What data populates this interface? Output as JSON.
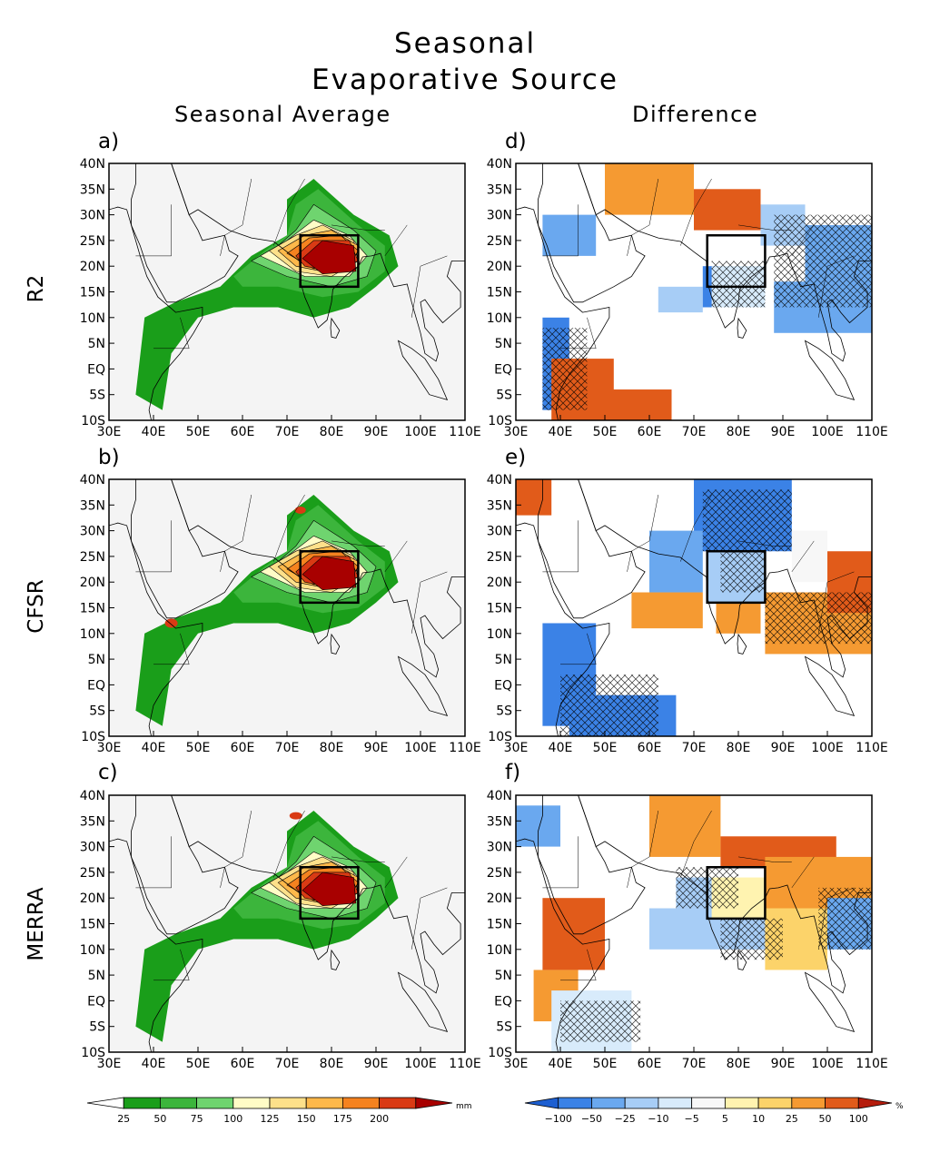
{
  "figure": {
    "title_line1": "Seasonal",
    "title_line2": "Evaporative Source",
    "col_left": "Seasonal Average",
    "col_right": "Difference",
    "rows": [
      "R2",
      "CFSR",
      "MERRA"
    ]
  },
  "panels": [
    {
      "id": "a",
      "label": "a)",
      "kind": "average",
      "row": 0,
      "col": 0
    },
    {
      "id": "d",
      "label": "d)",
      "kind": "difference",
      "row": 0,
      "col": 1
    },
    {
      "id": "b",
      "label": "b)",
      "kind": "average",
      "row": 1,
      "col": 0
    },
    {
      "id": "e",
      "label": "e)",
      "kind": "difference",
      "row": 1,
      "col": 1
    },
    {
      "id": "c",
      "label": "c)",
      "kind": "average",
      "row": 2,
      "col": 0
    },
    {
      "id": "f",
      "label": "f)",
      "kind": "difference",
      "row": 2,
      "col": 1
    }
  ],
  "axes": {
    "lat_labels": [
      "40N",
      "35N",
      "30N",
      "25N",
      "20N",
      "15N",
      "10N",
      "5N",
      "EQ",
      "5S",
      "10S"
    ],
    "lon_labels": [
      "30E",
      "40E",
      "50E",
      "60E",
      "70E",
      "80E",
      "90E",
      "100E",
      "110E"
    ],
    "lat_range": [
      -10,
      40
    ],
    "lon_range": [
      30,
      110
    ]
  },
  "box_region": {
    "lon": [
      73,
      86
    ],
    "lat": [
      16,
      26
    ]
  },
  "colorbar_left": {
    "labels": [
      "25",
      "50",
      "75",
      "100",
      "125",
      "150",
      "175",
      "200"
    ],
    "unit": "mm",
    "colors": [
      "#ffffff",
      "#1a9e1a",
      "#3cb53c",
      "#6fd46f",
      "#fffcc6",
      "#fde08a",
      "#fdb84a",
      "#f5821f",
      "#d93a14",
      "#a80000"
    ]
  },
  "colorbar_right": {
    "labels": [
      "−100",
      "−50",
      "−25",
      "−10",
      "−5",
      "5",
      "10",
      "25",
      "50",
      "100"
    ],
    "unit": "%",
    "colors": [
      "#1d5fd1",
      "#3b82e6",
      "#6aa8ef",
      "#a7cdf6",
      "#d8ebfb",
      "#f7f7f7",
      "#fff3b0",
      "#fcd36a",
      "#f59a32",
      "#e15b1a",
      "#b51c0c"
    ]
  },
  "map_colors": {
    "land_bg": "#f4f4f4",
    "coast": "#000000"
  }
}
